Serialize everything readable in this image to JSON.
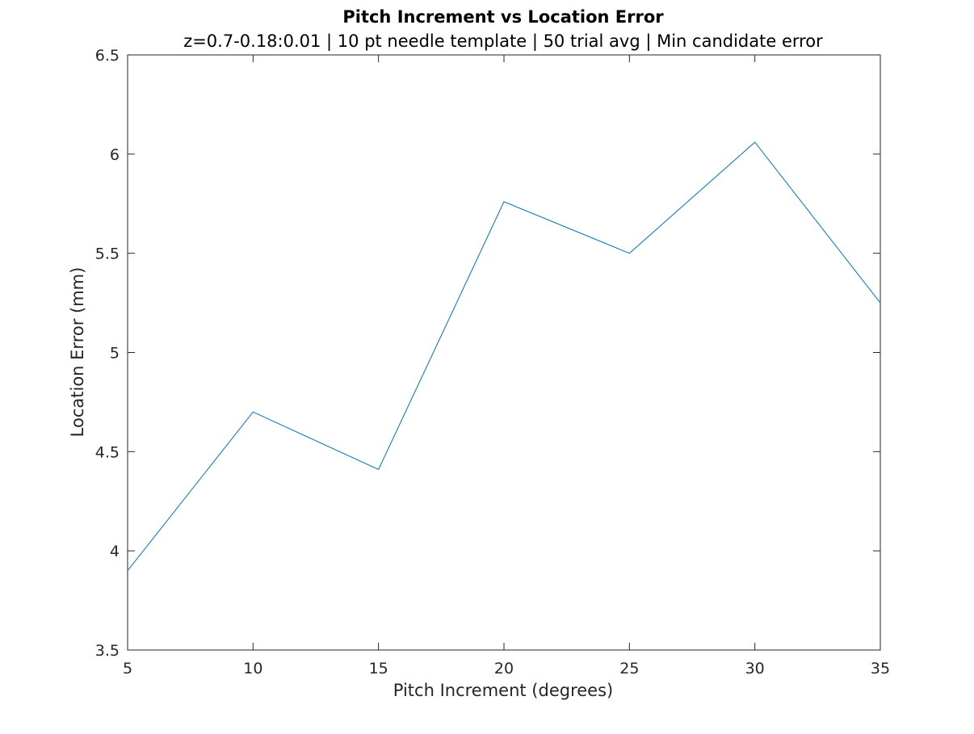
{
  "chart_data": {
    "type": "line",
    "title": "Pitch Increment vs Location Error",
    "subtitle": "z=0.7-0.18:0.01 | 10 pt needle template | 50 trial avg | Min candidate error",
    "xlabel": "Pitch Increment (degrees)",
    "ylabel": "Location Error (mm)",
    "xlim": [
      5,
      35
    ],
    "ylim": [
      3.5,
      6.5
    ],
    "xticks": [
      5,
      10,
      15,
      20,
      25,
      30,
      35
    ],
    "yticks": [
      3.5,
      4,
      4.5,
      5,
      5.5,
      6,
      6.5
    ],
    "xtick_labels": [
      "5",
      "10",
      "15",
      "20",
      "25",
      "30",
      "35"
    ],
    "ytick_labels": [
      "3.5",
      "4",
      "4.5",
      "5",
      "5.5",
      "6",
      "6.5"
    ],
    "grid": false,
    "series": [
      {
        "x": [
          5,
          10,
          15,
          20,
          25,
          30,
          35
        ],
        "values": [
          3.9,
          4.7,
          4.41,
          5.76,
          5.5,
          6.06,
          5.25
        ],
        "color": "#0072BD"
      }
    ]
  }
}
